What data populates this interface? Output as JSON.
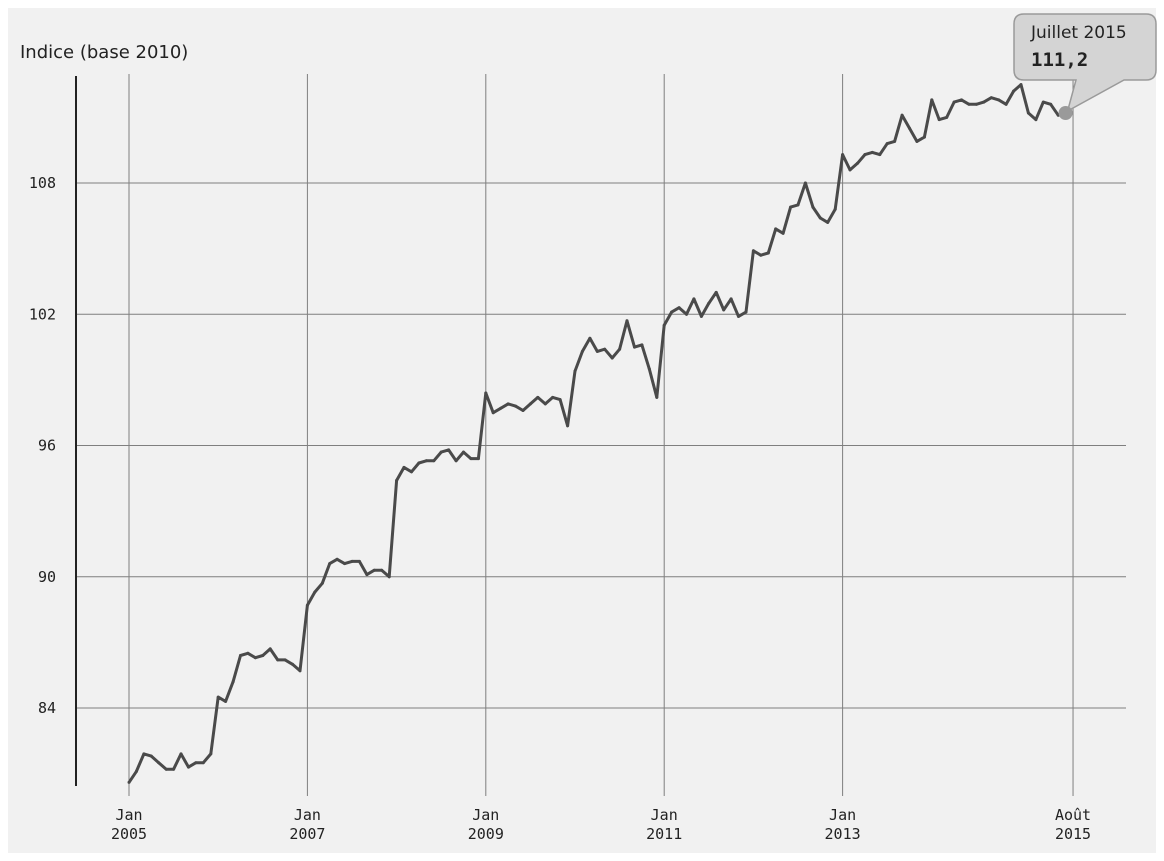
{
  "chart_data": {
    "type": "line",
    "title": "Indice (base 2010)",
    "ylim": [
      80,
      113.5
    ],
    "yticks": [
      84,
      90,
      96,
      102,
      108
    ],
    "ytick_labels": [
      "84",
      "90",
      "96",
      "102",
      "108"
    ],
    "xlim": [
      "2004-07",
      "2015-12"
    ],
    "xticks": [
      {
        "date": "2005-01",
        "line1": "Jan",
        "line2": "2005"
      },
      {
        "date": "2007-01",
        "line1": "Jan",
        "line2": "2007"
      },
      {
        "date": "2009-01",
        "line1": "Jan",
        "line2": "2009"
      },
      {
        "date": "2011-01",
        "line1": "Jan",
        "line2": "2011"
      },
      {
        "date": "2013-01",
        "line1": "Jan",
        "line2": "2013"
      },
      {
        "date": "2015-08",
        "line1": "Août",
        "line2": "2015"
      }
    ],
    "grid": true,
    "colors": {
      "background": "#f1f1f1",
      "line": "#4a4a4a",
      "grid": "#7f7f7f",
      "axis": "#222222",
      "tooltip_fill": "#d4d4d4",
      "tooltip_stroke": "#9a9a9a",
      "marker": "#9a9a9a"
    },
    "x": [
      "2005-01",
      "2005-02",
      "2005-03",
      "2005-04",
      "2005-05",
      "2005-06",
      "2005-07",
      "2005-08",
      "2005-09",
      "2005-10",
      "2005-11",
      "2005-12",
      "2006-01",
      "2006-02",
      "2006-03",
      "2006-04",
      "2006-05",
      "2006-06",
      "2006-07",
      "2006-08",
      "2006-09",
      "2006-10",
      "2006-11",
      "2006-12",
      "2007-01",
      "2007-02",
      "2007-03",
      "2007-04",
      "2007-05",
      "2007-06",
      "2007-07",
      "2007-08",
      "2007-09",
      "2007-10",
      "2007-11",
      "2007-12",
      "2008-01",
      "2008-02",
      "2008-03",
      "2008-04",
      "2008-05",
      "2008-06",
      "2008-07",
      "2008-08",
      "2008-09",
      "2008-10",
      "2008-11",
      "2008-12",
      "2009-01",
      "2009-02",
      "2009-03",
      "2009-04",
      "2009-05",
      "2009-06",
      "2009-07",
      "2009-08",
      "2009-09",
      "2009-10",
      "2009-11",
      "2009-12",
      "2010-01",
      "2010-02",
      "2010-03",
      "2010-04",
      "2010-05",
      "2010-06",
      "2010-07",
      "2010-08",
      "2010-09",
      "2010-10",
      "2010-11",
      "2010-12",
      "2011-01",
      "2011-02",
      "2011-03",
      "2011-04",
      "2011-05",
      "2011-06",
      "2011-07",
      "2011-08",
      "2011-09",
      "2011-10",
      "2011-11",
      "2011-12",
      "2012-01",
      "2012-02",
      "2012-03",
      "2012-04",
      "2012-05",
      "2012-06",
      "2012-07",
      "2012-08",
      "2012-09",
      "2012-10",
      "2012-11",
      "2012-12",
      "2013-01",
      "2013-02",
      "2013-03",
      "2013-04",
      "2013-05",
      "2013-06",
      "2013-07",
      "2013-08",
      "2013-09",
      "2013-10",
      "2013-11",
      "2013-12",
      "2014-01",
      "2014-02",
      "2014-03",
      "2014-04",
      "2014-05",
      "2014-06",
      "2014-07",
      "2014-08",
      "2014-09",
      "2014-10",
      "2014-11",
      "2014-12",
      "2015-01",
      "2015-02",
      "2015-03",
      "2015-04",
      "2015-05",
      "2015-06",
      "2015-07"
    ],
    "series": [
      {
        "values": [
          80.6,
          81.1,
          81.9,
          81.8,
          81.5,
          81.2,
          81.2,
          81.9,
          81.3,
          81.5,
          81.5,
          81.9,
          84.5,
          84.3,
          85.2,
          86.4,
          86.5,
          86.3,
          86.4,
          86.7,
          86.2,
          86.2,
          86.0,
          85.7,
          88.7,
          89.3,
          89.7,
          90.6,
          90.8,
          90.6,
          90.7,
          90.7,
          90.1,
          90.3,
          90.3,
          90.0,
          94.4,
          95.0,
          94.8,
          95.2,
          95.3,
          95.3,
          95.7,
          95.8,
          95.3,
          95.7,
          95.4,
          95.4,
          98.4,
          97.5,
          97.7,
          97.9,
          97.8,
          97.6,
          97.9,
          98.2,
          97.9,
          98.2,
          98.1,
          96.9,
          99.4,
          100.3,
          100.9,
          100.3,
          100.4,
          100.0,
          100.4,
          101.7,
          100.5,
          100.6,
          99.5,
          98.2,
          101.5,
          102.1,
          102.3,
          102.0,
          102.7,
          101.9,
          102.5,
          103.0,
          102.2,
          102.7,
          101.9,
          102.1,
          104.9,
          104.7,
          104.8,
          105.9,
          105.7,
          106.9,
          107.0,
          108.0,
          106.9,
          106.4,
          106.2,
          106.8,
          109.3,
          108.6,
          108.9,
          109.3,
          109.4,
          109.3,
          109.8,
          109.9,
          111.1,
          110.5,
          109.9,
          110.1,
          111.8,
          110.9,
          111.0,
          111.7,
          111.8,
          111.6,
          111.6,
          111.7,
          111.9,
          111.8,
          111.6,
          112.2,
          112.5,
          111.2,
          110.9,
          111.7,
          111.6,
          111.1,
          111.2
        ]
      }
    ],
    "tooltip": {
      "label": "Juillet 2015",
      "value": "111,2",
      "x": "2015-07",
      "y": 111.2
    }
  }
}
